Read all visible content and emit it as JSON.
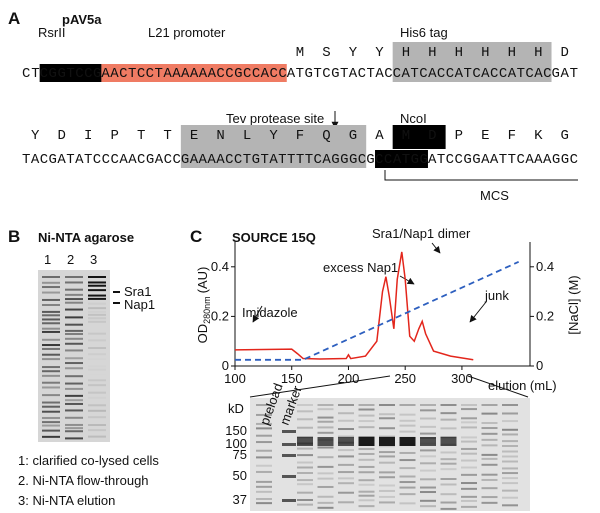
{
  "panel_a": {
    "label": "A",
    "plasmid": "pAV5a",
    "features": [
      "RsrII",
      "L21 promoter",
      "His6 tag",
      "Tev protease site",
      "NcoI",
      "MCS"
    ],
    "rows": [
      {
        "segments": [
          {
            "text": "CT",
            "style": "plain"
          },
          {
            "text": "CGGTCCG",
            "style": "black"
          },
          {
            "text": "AACTCCTAAAAAACCGCCACC",
            "style": "salmon"
          },
          {
            "text": "ATGTCGTACTAC",
            "style": "plain"
          },
          {
            "text": "CATCACCATCACCATCAC",
            "style": "gray"
          },
          {
            "text": "GAT",
            "style": "plain"
          }
        ],
        "aminos": [
          null,
          null,
          null,
          null,
          null,
          null,
          null,
          null,
          null,
          null,
          "M",
          "S",
          "Y",
          "Y",
          "H",
          "H",
          "H",
          "H",
          "H",
          "H",
          "D"
        ]
      },
      {
        "segments": [
          {
            "text": "TACGATATCCCAACGACC",
            "style": "plain"
          },
          {
            "text": "GAAAACCTGTATTTTCAGGGC",
            "style": "gray"
          },
          {
            "text": "G",
            "style": "plain"
          },
          {
            "text": "CCATGG",
            "style": "black"
          },
          {
            "text": "ATCCGGAATTCAAAGGC",
            "style": "plain"
          }
        ],
        "aminos": [
          "Y",
          "D",
          "I",
          "P",
          "T",
          "T",
          "E",
          "N",
          "L",
          "Y",
          "F",
          "Q",
          "G",
          "A",
          "M",
          "D",
          "P",
          "E",
          "F",
          "K",
          "G"
        ]
      }
    ]
  },
  "panel_b": {
    "label": "B",
    "title": "Ni-NTA agarose",
    "lanes": [
      "1",
      "2",
      "3"
    ],
    "bands": [
      "Sra1",
      "Nap1"
    ],
    "legend": [
      "1: clarified co-lysed cells",
      "2. Ni-NTA flow-through",
      "3: Ni-NTA elution"
    ]
  },
  "chart_data": {
    "type": "line",
    "label": "C",
    "title": "SOURCE 15Q",
    "x_label": "elution (mL)",
    "y_label": [
      "OD",
      "280nm",
      "(AU)"
    ],
    "y2_label": "[NaCl] (M)",
    "xlim": [
      100,
      360
    ],
    "xticks": [
      100,
      150,
      200,
      250,
      300
    ],
    "ylim": [
      0,
      0.5
    ],
    "yticks": [
      0,
      0.2,
      0.4
    ],
    "y2lim": [
      0,
      0.5
    ],
    "y2ticks": [
      0,
      0.2,
      0.4
    ],
    "annotations": [
      "Imidazole",
      "excess Nap1",
      "Sra1/Nap1 dimer",
      "junk"
    ],
    "series": [
      {
        "color": "#e3261c",
        "x": [
          100,
          150,
          155,
          160,
          175,
          198,
          200,
          202,
          215,
          225,
          230,
          233,
          236,
          240,
          243,
          247,
          250,
          254,
          258,
          262,
          265,
          268,
          275,
          290,
          310
        ],
        "values": [
          0.065,
          0.068,
          0.05,
          0.03,
          0.028,
          0.03,
          0.045,
          0.03,
          0.04,
          0.1,
          0.3,
          0.36,
          0.28,
          0.15,
          0.35,
          0.46,
          0.35,
          0.12,
          0.1,
          0.15,
          0.18,
          0.13,
          0.06,
          0.04,
          0.025
        ]
      },
      {
        "color": "#2d5fbf",
        "axis": "y2",
        "dashed": true,
        "x": [
          100,
          160,
          350
        ],
        "values": [
          0.025,
          0.025,
          0.42
        ]
      }
    ],
    "gel": {
      "unit": "kD",
      "markers": [
        "150",
        "100",
        "75",
        "50",
        "37"
      ],
      "lanes": [
        "preload",
        "marker"
      ]
    }
  }
}
